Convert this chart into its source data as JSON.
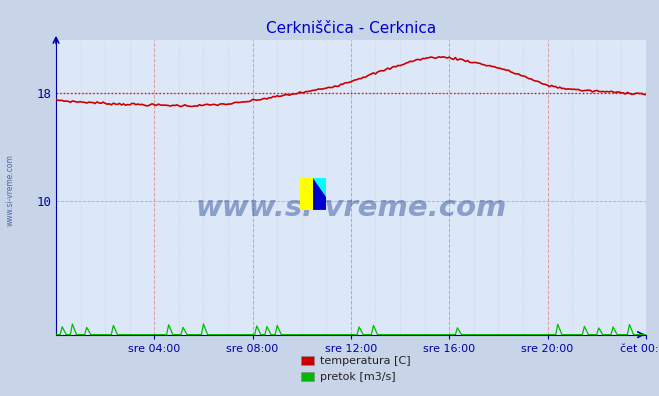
{
  "title": "Cerkniščica - Cerknica",
  "title_color": "#0000cc",
  "bg_color": "#c8d4e8",
  "plot_bg_color": "#dce8f8",
  "axis_color": "#0000aa",
  "temp_color": "#cc0000",
  "flow_color": "#00bb00",
  "avg_line_color": "#cc0000",
  "avg_value": 18.0,
  "ylim": [
    0,
    22
  ],
  "xlim": [
    0,
    288
  ],
  "ytick_vals": [
    10,
    18
  ],
  "ytick_labels": [
    "10",
    "18"
  ],
  "xtick_positions": [
    48,
    96,
    144,
    192,
    240,
    288
  ],
  "xtick_labels": [
    "sre 04:00",
    "sre 08:00",
    "sre 12:00",
    "sre 16:00",
    "sre 20:00",
    "čet 00:00"
  ],
  "watermark": "www.si-vreme.com",
  "watermark_color": "#1a3a8a",
  "side_label": "www.si-vreme.com",
  "legend_temp": "temperatura [C]",
  "legend_flow": "pretok [m3/s]",
  "grid_red_color": "#dd8888",
  "grid_minor_color": "#c8c8dd",
  "temp_data_x": [
    0,
    6,
    12,
    18,
    24,
    30,
    36,
    42,
    48,
    54,
    60,
    66,
    72,
    78,
    84,
    90,
    96,
    102,
    108,
    114,
    120,
    126,
    132,
    138,
    144,
    150,
    156,
    162,
    168,
    174,
    180,
    186,
    192,
    198,
    204,
    210,
    216,
    222,
    228,
    234,
    240,
    246,
    252,
    258,
    264,
    270,
    276,
    282,
    288
  ],
  "temp_data_y": [
    17.5,
    17.4,
    17.35,
    17.3,
    17.25,
    17.2,
    17.18,
    17.15,
    17.12,
    17.1,
    17.08,
    17.06,
    17.1,
    17.15,
    17.2,
    17.3,
    17.45,
    17.6,
    17.75,
    17.9,
    18.05,
    18.2,
    18.4,
    18.6,
    18.9,
    19.2,
    19.5,
    19.8,
    20.1,
    20.4,
    20.6,
    20.7,
    20.65,
    20.5,
    20.3,
    20.1,
    19.9,
    19.6,
    19.3,
    18.9,
    18.6,
    18.4,
    18.3,
    18.2,
    18.15,
    18.1,
    18.05,
    18.0,
    17.95
  ],
  "flow_max": 0.3
}
